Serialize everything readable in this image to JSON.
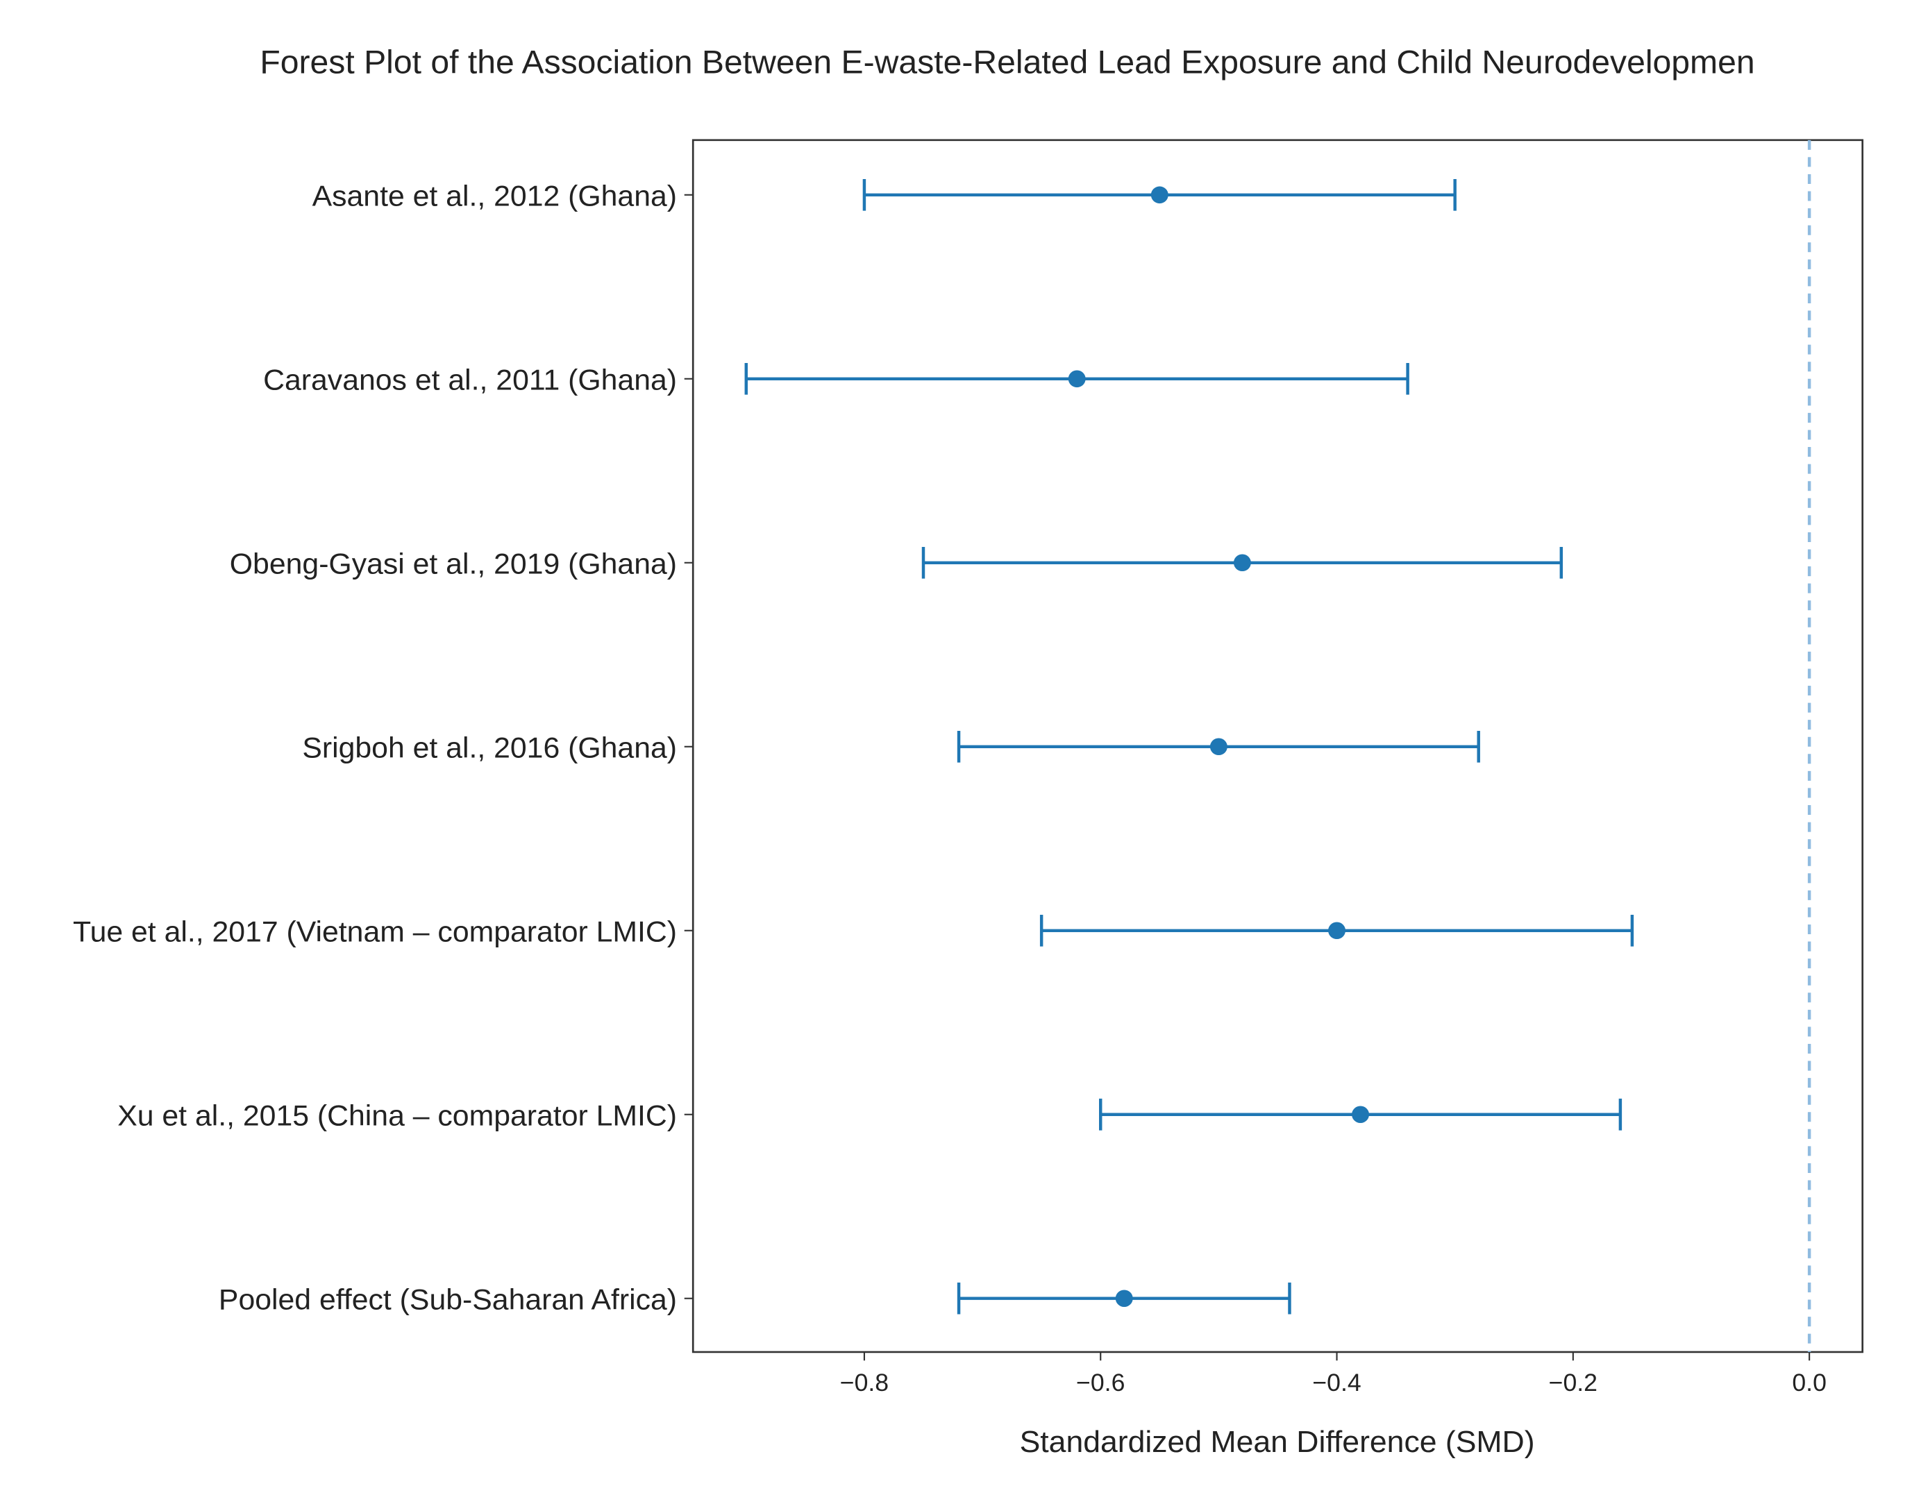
{
  "chart_data": {
    "type": "forest",
    "title": "Forest Plot of the Association Between E-waste-Related Lead Exposure and Child Neurodevelopmen",
    "xlabel": "Standardized Mean Difference (SMD)",
    "categories": [
      "Asante et al., 2012 (Ghana)",
      "Caravanos et al., 2011 (Ghana)",
      "Obeng-Gyasi et al., 2019 (Ghana)",
      "Srigboh et al., 2016 (Ghana)",
      "Tue et al., 2017 (Vietnam – comparator LMIC)",
      "Xu et al., 2015 (China – comparator LMIC)",
      "Pooled effect (Sub-Saharan Africa)"
    ],
    "values": [
      -0.55,
      -0.62,
      -0.48,
      -0.5,
      -0.4,
      -0.38,
      -0.58
    ],
    "ci_lower": [
      -0.8,
      -0.9,
      -0.75,
      -0.72,
      -0.65,
      -0.6,
      -0.72
    ],
    "ci_upper": [
      -0.3,
      -0.34,
      -0.21,
      -0.28,
      -0.15,
      -0.16,
      -0.44
    ],
    "color": "#1f77b4",
    "reference_line": 0,
    "reference_color": "#8fbbe0",
    "xlim": [
      -0.945,
      0.045
    ],
    "xticks": [
      {
        "value": -0.8,
        "label": "−0.8"
      },
      {
        "value": -0.6,
        "label": "−0.6"
      },
      {
        "value": -0.4,
        "label": "−0.4"
      },
      {
        "value": -0.2,
        "label": "−0.2"
      },
      {
        "value": 0,
        "label": "0.0"
      }
    ]
  }
}
